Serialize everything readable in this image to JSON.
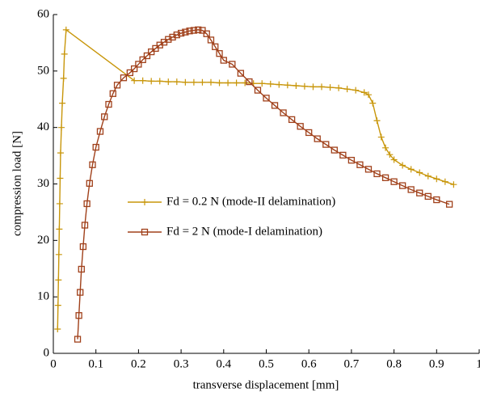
{
  "chart_data": {
    "type": "line",
    "xlabel": "transverse displacement [mm]",
    "ylabel": "compression load [N]",
    "xlim": [
      0,
      1
    ],
    "xticks": [
      0,
      0.1,
      0.2,
      0.3,
      0.4,
      0.5,
      0.6,
      0.7,
      0.8,
      0.9,
      1
    ],
    "ylim": [
      0,
      60
    ],
    "yticks": [
      0,
      10,
      20,
      30,
      40,
      50,
      60
    ],
    "grid": false,
    "legend_position": "center",
    "series": [
      {
        "name": "Fd = 0.2 N (mode-II delamination)",
        "color": "#c8960a",
        "marker": "plus",
        "x": [
          0.01,
          0.011,
          0.012,
          0.013,
          0.014,
          0.015,
          0.016,
          0.017,
          0.019,
          0.021,
          0.024,
          0.026,
          0.03,
          0.19,
          0.21,
          0.23,
          0.25,
          0.27,
          0.29,
          0.31,
          0.33,
          0.35,
          0.37,
          0.39,
          0.41,
          0.43,
          0.45,
          0.47,
          0.49,
          0.51,
          0.53,
          0.55,
          0.57,
          0.59,
          0.61,
          0.63,
          0.65,
          0.67,
          0.69,
          0.71,
          0.73,
          0.74,
          0.75,
          0.76,
          0.77,
          0.78,
          0.79,
          0.8,
          0.82,
          0.84,
          0.86,
          0.88,
          0.9,
          0.92,
          0.94
        ],
        "values": [
          4.3,
          8.5,
          13,
          17.5,
          22,
          26.5,
          31,
          35.5,
          40,
          44.3,
          48.7,
          53,
          57.3,
          48.3,
          48.3,
          48.2,
          48.2,
          48.1,
          48.1,
          48.0,
          48.0,
          48.0,
          48.0,
          47.9,
          47.9,
          47.9,
          47.9,
          47.8,
          47.8,
          47.7,
          47.6,
          47.5,
          47.4,
          47.3,
          47.2,
          47.2,
          47.1,
          47.0,
          46.8,
          46.6,
          46.2,
          45.8,
          44.3,
          41.2,
          38.3,
          36.4,
          35.2,
          34.3,
          33.3,
          32.6,
          32.0,
          31.4,
          30.9,
          30.4,
          29.9
        ]
      },
      {
        "name": "Fd = 2 N (mode-I delamination)",
        "color": "#a0401a",
        "marker": "square",
        "x": [
          0.057,
          0.06,
          0.063,
          0.066,
          0.07,
          0.074,
          0.079,
          0.085,
          0.092,
          0.1,
          0.11,
          0.12,
          0.13,
          0.14,
          0.15,
          0.165,
          0.18,
          0.19,
          0.2,
          0.21,
          0.22,
          0.23,
          0.24,
          0.25,
          0.26,
          0.27,
          0.28,
          0.29,
          0.3,
          0.31,
          0.32,
          0.33,
          0.34,
          0.35,
          0.36,
          0.37,
          0.38,
          0.39,
          0.4,
          0.42,
          0.44,
          0.46,
          0.48,
          0.5,
          0.52,
          0.54,
          0.56,
          0.58,
          0.6,
          0.62,
          0.64,
          0.66,
          0.68,
          0.7,
          0.72,
          0.74,
          0.76,
          0.78,
          0.8,
          0.82,
          0.84,
          0.86,
          0.88,
          0.9,
          0.93
        ],
        "values": [
          2.5,
          6.7,
          10.8,
          14.9,
          18.9,
          22.7,
          26.5,
          30.1,
          33.4,
          36.5,
          39.3,
          41.9,
          44.1,
          46,
          47.5,
          48.8,
          49.7,
          50.4,
          51.2,
          52,
          52.7,
          53.4,
          54,
          54.6,
          55.1,
          55.6,
          56,
          56.4,
          56.7,
          56.9,
          57.1,
          57.2,
          57.3,
          57.2,
          56.6,
          55.5,
          54.3,
          53.1,
          51.9,
          51.2,
          49.6,
          48.1,
          46.6,
          45.2,
          43.9,
          42.6,
          41.4,
          40.2,
          39.1,
          38,
          37,
          36,
          35.1,
          34.2,
          33.4,
          32.6,
          31.8,
          31.1,
          30.4,
          29.7,
          29,
          28.4,
          27.8,
          27.2,
          26.4
        ]
      }
    ]
  }
}
